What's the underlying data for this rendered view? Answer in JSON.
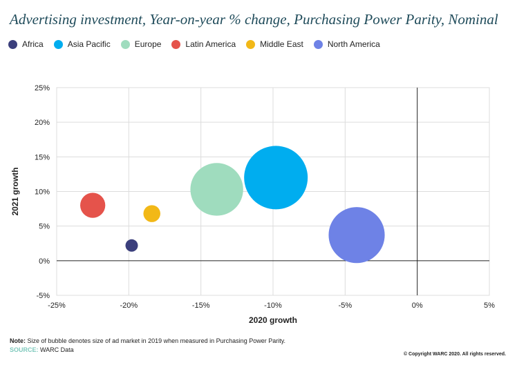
{
  "chart_data": {
    "type": "scatter",
    "subtype": "bubble",
    "title": "Advertising investment, Year-on-year % change, Purchasing Power Parity, Nominal",
    "xlabel": "2020 growth",
    "ylabel": "2021 growth",
    "xlim": [
      -25,
      5
    ],
    "ylim": [
      -5,
      25
    ],
    "xticks": [
      -25,
      -20,
      -15,
      -10,
      -5,
      0,
      5
    ],
    "yticks": [
      -5,
      0,
      5,
      10,
      15,
      20,
      25
    ],
    "xtick_labels": [
      "-25%",
      "-20%",
      "-15%",
      "-10%",
      "-5%",
      "0%",
      "5%"
    ],
    "ytick_labels": [
      "-5%",
      "0%",
      "5%",
      "10%",
      "15%",
      "20%",
      "25%"
    ],
    "grid": true,
    "legend_position": "top-left",
    "series": [
      {
        "name": "Africa",
        "color": "#3b3f7c",
        "x": -19.8,
        "y": 2.2,
        "size": 0.6
      },
      {
        "name": "Asia Pacific",
        "color": "#00adef",
        "x": -9.8,
        "y": 12.0,
        "size": 45
      },
      {
        "name": "Europe",
        "color": "#9fdcbe",
        "x": -13.9,
        "y": 10.3,
        "size": 31
      },
      {
        "name": "Latin America",
        "color": "#e5534b",
        "x": -22.5,
        "y": 8.0,
        "size": 7
      },
      {
        "name": "Middle East",
        "color": "#f2b817",
        "x": -18.4,
        "y": 6.8,
        "size": 3.2
      },
      {
        "name": "North America",
        "color": "#6e82e6",
        "x": -4.2,
        "y": 3.7,
        "size": 35
      }
    ]
  },
  "footer": {
    "note_label": "Note:",
    "note_text": " Size of bubble denotes size of ad market in 2019 when measured in Purchasing Power Parity.",
    "source_label": "SOURCE:",
    "source_text": " WARC Data",
    "copyright": "© Copyright WARC 2020. All rights reserved."
  }
}
